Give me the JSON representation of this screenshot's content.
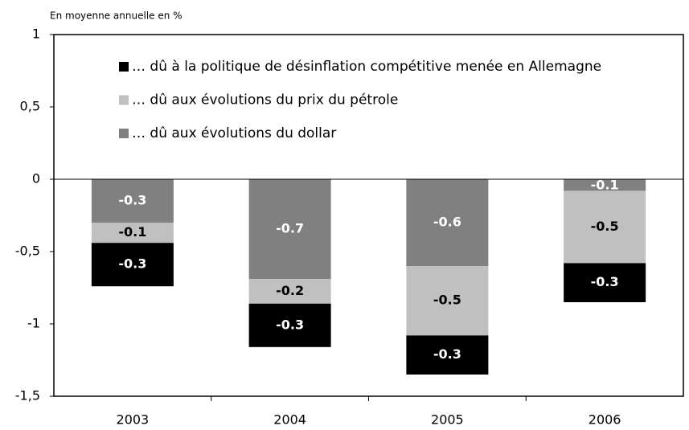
{
  "chart_data": {
    "type": "bar",
    "stacked": true,
    "ylabel": "En moyenne annuelle en %",
    "categories": [
      "2003",
      "2004",
      "2005",
      "2006"
    ],
    "series": [
      {
        "name": "… dû à la politique de désinflation compétitive menée en Allemagne",
        "color": "#000000",
        "label_color": "#ffffff",
        "values": [
          -0.3,
          -0.3,
          -0.27,
          -0.27
        ],
        "value_labels": [
          "-0.3",
          "-0.3",
          "-0.3",
          "-0.3"
        ]
      },
      {
        "name": "… dû aux évolutions du prix du pétrole",
        "color": "#c0c0c0",
        "label_color": "#000000",
        "values": [
          -0.14,
          -0.17,
          -0.48,
          -0.5
        ],
        "value_labels": [
          "-0.1",
          "-0.2",
          "-0.5",
          "-0.5"
        ]
      },
      {
        "name": "… dû aux évolutions du dollar",
        "color": "#808080",
        "label_color": "#ffffff",
        "values": [
          -0.3,
          -0.69,
          -0.6,
          -0.08
        ],
        "value_labels": [
          "-0.3",
          "-0.7",
          "-0.6",
          "-0.1"
        ]
      }
    ],
    "ylim": [
      -1.5,
      1
    ],
    "yticks": [
      {
        "value": -1.5,
        "label": "-1,5"
      },
      -1,
      {
        "value": -0.5,
        "label": "-0,5"
      },
      0,
      {
        "value": 0.5,
        "label": "0,5"
      },
      1
    ],
    "legend": "top-left"
  }
}
